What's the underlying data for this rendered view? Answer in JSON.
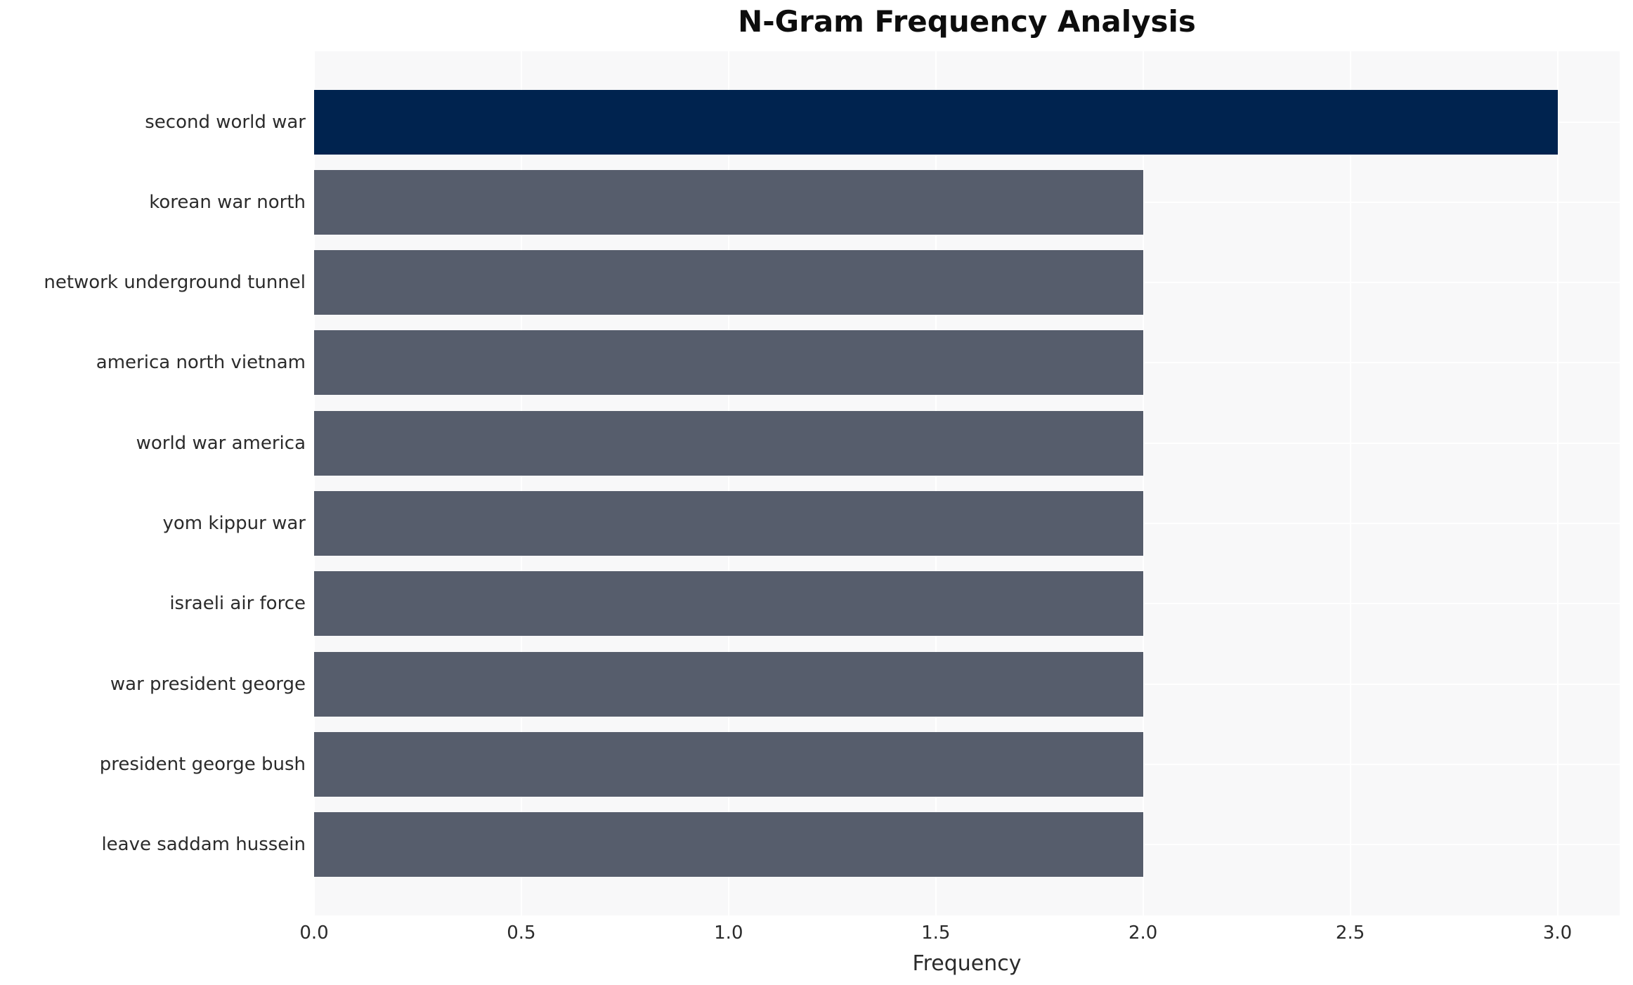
{
  "chart_data": {
    "type": "bar",
    "orientation": "horizontal",
    "title": "N-Gram Frequency Analysis",
    "xlabel": "Frequency",
    "ylabel": "",
    "categories": [
      "second world war",
      "korean war north",
      "network underground tunnel",
      "america north vietnam",
      "world war america",
      "yom kippur war",
      "israeli air force",
      "war president george",
      "president george bush",
      "leave saddam hussein"
    ],
    "values": [
      3,
      2,
      2,
      2,
      2,
      2,
      2,
      2,
      2,
      2
    ],
    "bar_colors": [
      "#00234f",
      "#565d6c",
      "#565d6c",
      "#565d6c",
      "#565d6c",
      "#565d6c",
      "#565d6c",
      "#565d6c",
      "#565d6c",
      "#565d6c"
    ],
    "xlim": [
      0,
      3.15
    ],
    "xticks": [
      0.0,
      0.5,
      1.0,
      1.5,
      2.0,
      2.5,
      3.0
    ],
    "xtick_labels": [
      "0.0",
      "0.5",
      "1.0",
      "1.5",
      "2.0",
      "2.5",
      "3.0"
    ],
    "grid": true,
    "legend": "none",
    "colors": {
      "highlight_bar": "#00234f",
      "default_bar": "#565d6c",
      "plot_background": "#f8f8f9",
      "grid_line": "#ffffff",
      "tick_text": "#2b2b2b",
      "title_text": "#0d0d0d"
    }
  }
}
